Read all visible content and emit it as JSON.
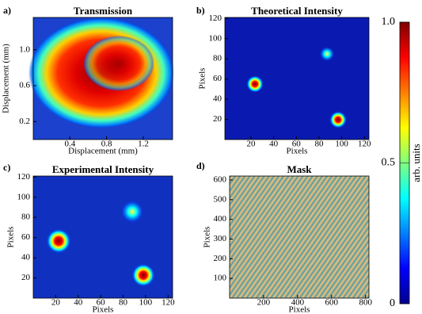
{
  "chart_data": [
    {
      "type": "heatmap",
      "panel_label": "a)",
      "title": "Transmission",
      "xlabel": "Displacement (mm)",
      "ylabel": "Displacement (mm)",
      "xlim": [
        0,
        1.52
      ],
      "xticks": [
        0.4,
        0.8,
        1.2
      ],
      "ylim": [
        0,
        1.36
      ],
      "yticks": [
        {
          "value": 0.2,
          "label": "0.2"
        },
        {
          "value": 0.6,
          "label": "0.6"
        },
        {
          "value": 1.0,
          "label": "1.0"
        }
      ]
    },
    {
      "type": "heatmap",
      "panel_label": "b)",
      "title": "Theoretical Intensity",
      "xlabel": "Pixels",
      "ylabel": "Pixels",
      "xlim": [
        -3,
        124
      ],
      "xticks": [
        20,
        40,
        60,
        80,
        100,
        120
      ],
      "ylim": [
        0,
        121
      ],
      "yticks": [
        20,
        40,
        60,
        80,
        100,
        120
      ]
    },
    {
      "type": "heatmap",
      "panel_label": "c)",
      "title": "Experimental Intensity",
      "xlabel": "Pixels",
      "ylabel": "Pixels",
      "xlim": [
        0,
        124
      ],
      "xticks": [
        20,
        40,
        60,
        80,
        100,
        120
      ],
      "ylim": [
        0,
        121
      ],
      "yticks": [
        20,
        40,
        60,
        80,
        100,
        120
      ]
    },
    {
      "type": "heatmap",
      "panel_label": "d)",
      "title": "Mask",
      "xlabel": "Pixels",
      "ylabel": "Pixels",
      "xlim": [
        0,
        820
      ],
      "xticks": [
        200,
        400,
        600,
        800
      ],
      "ylim": [
        0,
        620
      ],
      "yticks": [
        100,
        200,
        300,
        400,
        500,
        600
      ]
    },
    {
      "type": "colorbar",
      "ylabel": "arb. units",
      "ylim": [
        0,
        1
      ],
      "yticks": [
        0,
        0.5,
        {
          "value": 1.0,
          "label": "1.0"
        }
      ]
    }
  ]
}
